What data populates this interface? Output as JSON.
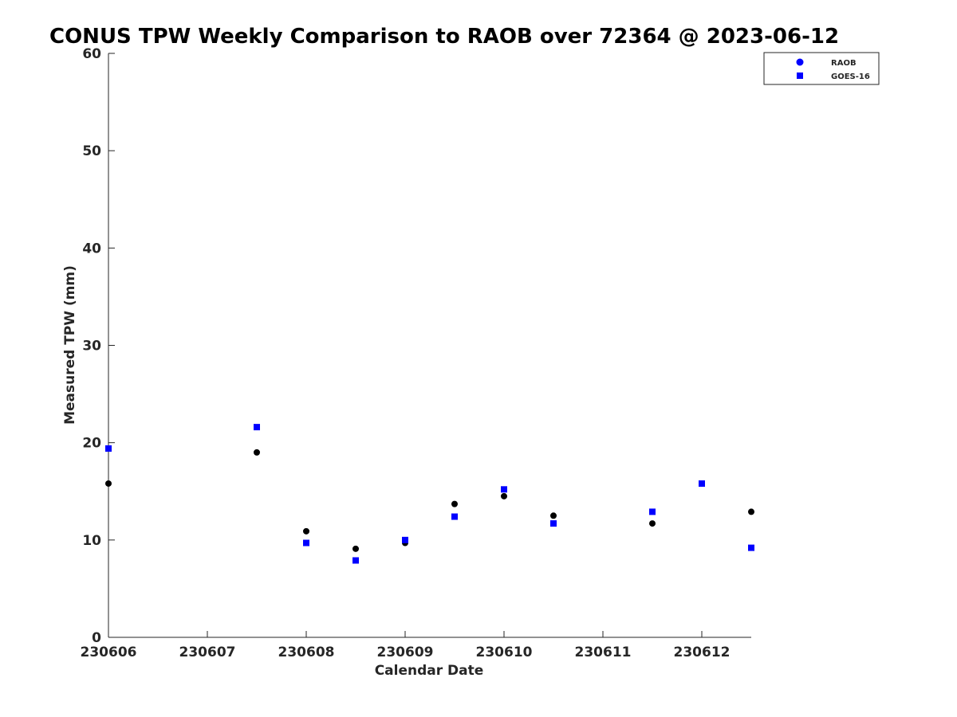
{
  "chart_data": {
    "type": "scatter",
    "title": "CONUS TPW Weekly Comparison to RAOB over 72364 @ 2023-06-12",
    "xlabel": "Calendar Date",
    "ylabel": "Measured TPW (mm)",
    "xlim": [
      230606,
      230612.5
    ],
    "ylim": [
      0,
      60
    ],
    "x_ticks": [
      230606,
      230607,
      230608,
      230609,
      230610,
      230611,
      230612
    ],
    "x_tick_labels": [
      "230606",
      "230607",
      "230608",
      "230609",
      "230610",
      "230611",
      "230612"
    ],
    "y_ticks": [
      0,
      10,
      20,
      30,
      40,
      50,
      60
    ],
    "y_tick_labels": [
      "0",
      "10",
      "20",
      "30",
      "40",
      "50",
      "60"
    ],
    "grid": false,
    "legend": {
      "position": "top-right",
      "entries": [
        "RAOB",
        "GOES-16"
      ]
    },
    "series": [
      {
        "name": "RAOB",
        "marker": "circle",
        "color": "#000000",
        "legend_color": "#0000ff",
        "points": [
          {
            "x": 230606.0,
            "y": 15.8
          },
          {
            "x": 230607.5,
            "y": 19.0
          },
          {
            "x": 230608.0,
            "y": 10.9
          },
          {
            "x": 230608.5,
            "y": 9.1
          },
          {
            "x": 230609.0,
            "y": 9.7
          },
          {
            "x": 230609.5,
            "y": 13.7
          },
          {
            "x": 230610.0,
            "y": 14.5
          },
          {
            "x": 230610.5,
            "y": 12.5
          },
          {
            "x": 230611.5,
            "y": 11.7
          },
          {
            "x": 230612.0,
            "y": 15.8
          },
          {
            "x": 230612.5,
            "y": 12.9
          }
        ]
      },
      {
        "name": "GOES-16",
        "marker": "square",
        "color": "#0000ff",
        "legend_color": "#0000ff",
        "points": [
          {
            "x": 230606.0,
            "y": 19.4
          },
          {
            "x": 230607.5,
            "y": 21.6
          },
          {
            "x": 230608.0,
            "y": 9.7
          },
          {
            "x": 230608.5,
            "y": 7.9
          },
          {
            "x": 230609.0,
            "y": 10.0
          },
          {
            "x": 230609.5,
            "y": 12.4
          },
          {
            "x": 230610.0,
            "y": 15.2
          },
          {
            "x": 230610.5,
            "y": 11.7
          },
          {
            "x": 230611.5,
            "y": 12.9
          },
          {
            "x": 230612.0,
            "y": 15.8
          },
          {
            "x": 230612.5,
            "y": 9.2
          }
        ]
      }
    ]
  }
}
